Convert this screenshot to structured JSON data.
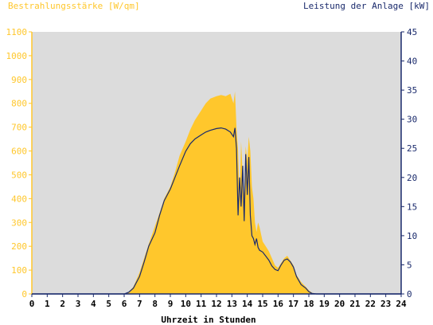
{
  "chart_data": {
    "type": "area",
    "y_left_label": "Bestrahlungsstärke [W/qm]",
    "y_right_label": "Leistung der Anlage [kW]",
    "xlabel": "Uhrzeit in Stunden",
    "xlim": [
      0,
      24
    ],
    "ylim_left": [
      0,
      1100
    ],
    "ylim_right": [
      0,
      45
    ],
    "x_ticks": [
      "0",
      "1",
      "2",
      "3",
      "4",
      "5",
      "6",
      "7",
      "8",
      "9",
      "10",
      "11",
      "12",
      "13",
      "14",
      "15",
      "16",
      "17",
      "18",
      "19",
      "20",
      "21",
      "22",
      "23",
      "24"
    ],
    "y_left_ticks": [
      "0",
      "100",
      "200",
      "300",
      "400",
      "500",
      "600",
      "700",
      "800",
      "900",
      "1000",
      "1100"
    ],
    "y_right_ticks": [
      "0",
      "5",
      "10",
      "15",
      "20",
      "25",
      "30",
      "35",
      "40",
      "45"
    ],
    "grid": false,
    "colors": {
      "irradiance_fill": "#FFC72C",
      "power_line": "#1A2A6C",
      "plot_background": "#DCDCDC"
    },
    "series": [
      {
        "name": "Bestrahlungsstärke [W/qm]",
        "axis": "left",
        "x": [
          0,
          6.0,
          6.3,
          6.6,
          7.0,
          7.3,
          7.6,
          8.0,
          8.3,
          8.6,
          9.0,
          9.3,
          9.6,
          10.0,
          10.3,
          10.6,
          11.0,
          11.3,
          11.6,
          12.0,
          12.3,
          12.6,
          12.9,
          13.1,
          13.2,
          13.3,
          13.4,
          13.5,
          13.6,
          13.7,
          13.8,
          13.9,
          14.0,
          14.1,
          14.2,
          14.3,
          14.4,
          14.5,
          14.6,
          14.7,
          14.8,
          15.0,
          15.2,
          15.4,
          15.6,
          15.8,
          16.0,
          16.2,
          16.4,
          16.6,
          16.8,
          17.0,
          17.2,
          17.5,
          17.8,
          18.0,
          18.2,
          18.5,
          24
        ],
        "y": [
          0,
          0,
          8,
          30,
          90,
          150,
          210,
          285,
          340,
          400,
          450,
          510,
          580,
          640,
          690,
          730,
          770,
          800,
          820,
          830,
          835,
          830,
          840,
          800,
          850,
          700,
          600,
          400,
          640,
          500,
          420,
          620,
          560,
          660,
          600,
          450,
          400,
          300,
          260,
          300,
          280,
          220,
          200,
          180,
          150,
          120,
          110,
          130,
          150,
          160,
          140,
          120,
          80,
          50,
          30,
          15,
          5,
          0,
          0
        ]
      },
      {
        "name": "Leistung der Anlage [kW]",
        "axis": "right",
        "x": [
          0,
          6.0,
          6.3,
          6.6,
          7.0,
          7.3,
          7.6,
          8.0,
          8.3,
          8.6,
          9.0,
          9.3,
          9.6,
          10.0,
          10.3,
          10.6,
          11.0,
          11.3,
          11.6,
          12.0,
          12.3,
          12.6,
          12.9,
          13.1,
          13.2,
          13.3,
          13.4,
          13.5,
          13.6,
          13.7,
          13.8,
          13.9,
          14.0,
          14.1,
          14.2,
          14.3,
          14.4,
          14.5,
          14.6,
          14.7,
          14.8,
          15.0,
          15.2,
          15.4,
          15.6,
          15.8,
          16.0,
          16.2,
          16.4,
          16.6,
          16.8,
          17.0,
          17.2,
          17.5,
          17.8,
          18.0,
          18.2,
          18.5,
          24
        ],
        "y": [
          0,
          0,
          0.3,
          1.0,
          3.0,
          5.5,
          8.2,
          10.5,
          13.5,
          16.0,
          18.0,
          20.0,
          22.0,
          24.5,
          25.8,
          26.6,
          27.3,
          27.8,
          28.1,
          28.4,
          28.5,
          28.3,
          27.8,
          27.0,
          28.5,
          25.0,
          13.5,
          20.0,
          15.0,
          22.0,
          12.5,
          24.0,
          17.0,
          23.5,
          13.5,
          10.0,
          9.5,
          8.5,
          9.5,
          8.0,
          7.5,
          7.2,
          6.5,
          5.8,
          4.8,
          4.2,
          4.0,
          5.0,
          5.8,
          6.0,
          5.5,
          4.6,
          3.0,
          1.6,
          1.0,
          0.4,
          0.1,
          0,
          0
        ]
      }
    ]
  }
}
